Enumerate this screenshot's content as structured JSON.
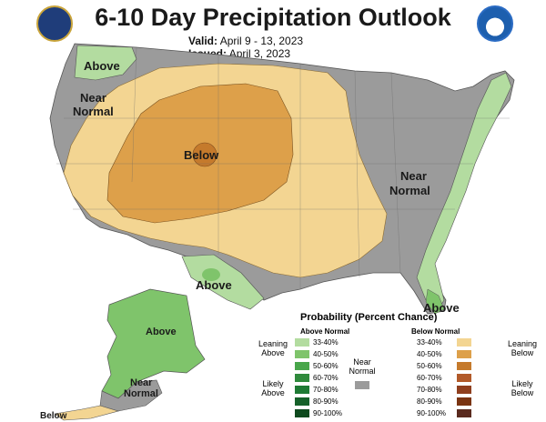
{
  "header": {
    "title": "6-10 Day Precipitation Outlook",
    "valid_label": "Valid:",
    "valid_value": "April 9 - 13, 2023",
    "issued_label": "Issued:",
    "issued_value": "April 3, 2023"
  },
  "map_labels": {
    "above_nw": "Above",
    "near_normal_nw_1": "Near",
    "near_normal_nw_2": "Normal",
    "below_center": "Below",
    "near_normal_e_1": "Near",
    "near_normal_e_2": "Normal",
    "above_tx": "Above",
    "above_fl": "Above",
    "above_ak": "Above",
    "near_normal_ak_1": "Near",
    "near_normal_ak_2": "Normal",
    "below_ak": "Below"
  },
  "legend": {
    "title": "Probability (Percent Chance)",
    "above_header": "Above Normal",
    "below_header": "Below Normal",
    "near_1": "Near",
    "near_2": "Normal",
    "leaning_above_1": "Leaning",
    "leaning_above_2": "Above",
    "likely_above_1": "Likely",
    "likely_above_2": "Above",
    "leaning_below_1": "Leaning",
    "leaning_below_2": "Below",
    "likely_below_1": "Likely",
    "likely_below_2": "Below",
    "above_ranges": [
      "33-40%",
      "40-50%",
      "50-60%",
      "60-70%",
      "70-80%",
      "80-90%",
      "90-100%"
    ],
    "below_ranges": [
      "33-40%",
      "40-50%",
      "50-60%",
      "60-70%",
      "70-80%",
      "80-90%",
      "90-100%"
    ],
    "above_colors": [
      "#b3dca0",
      "#7fc46b",
      "#48a64a",
      "#2f8a3c",
      "#1e7a34",
      "#16612a",
      "#0e4a1e"
    ],
    "below_colors": [
      "#f3d592",
      "#dda04a",
      "#c57a2c",
      "#b25a29",
      "#8f3f1e",
      "#7a3412",
      "#5a2a1e"
    ],
    "near_color": "#9b9b9b"
  },
  "colors": {
    "near_normal": "#9b9b9b",
    "below_33_40": "#f3d592",
    "below_40_50": "#dda04a",
    "below_50_60": "#c57a2c",
    "above_33_40": "#b3dca0",
    "above_40_50": "#7fc46b"
  }
}
